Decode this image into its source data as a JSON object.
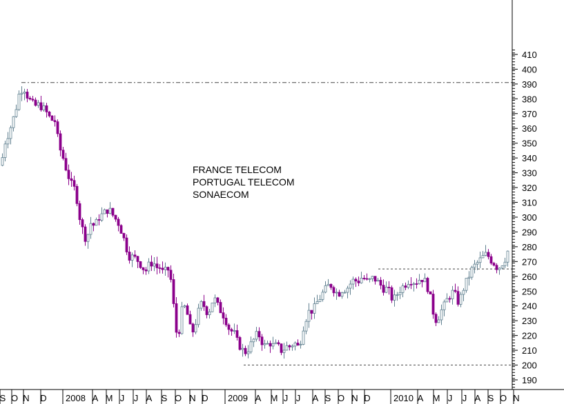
{
  "chart_data": {
    "type": "candlestick",
    "title_lines": [
      "FRANCE TELECOM",
      "PORTUGAL TELECOM",
      "SONAECOM"
    ],
    "y_ticks": [
      190,
      200,
      210,
      220,
      230,
      240,
      250,
      260,
      270,
      280,
      290,
      300,
      310,
      320,
      330,
      340,
      350,
      360,
      370,
      380,
      390,
      400,
      410
    ],
    "x_ticks": [
      "S",
      "O",
      "N",
      "D",
      "2008",
      "A",
      "M",
      "J",
      "J",
      "A",
      "S",
      "O",
      "N",
      "D",
      "2009",
      "A",
      "M",
      "J",
      "J",
      "A",
      "S",
      "O",
      "N",
      "D",
      "2010",
      "A",
      "M",
      "J",
      "J",
      "A",
      "S",
      "O",
      "N"
    ],
    "ylim": [
      185,
      414
    ],
    "grid": false,
    "colors": {
      "up": "#5f7f8f",
      "down": "#8b008b",
      "axis": "#000000",
      "reference": "#444444"
    },
    "reference_lines": [
      {
        "y": 391,
        "style": "dash-dot",
        "span": "from Nov 2007 to right edge"
      },
      {
        "y": 265,
        "style": "dashed",
        "span": "from Dec 2009 to right edge"
      },
      {
        "y": 200,
        "style": "dashed",
        "span": "from Mar 2009 to right edge"
      }
    ],
    "path_points": [
      [
        0,
        335
      ],
      [
        6,
        351
      ],
      [
        12,
        358
      ],
      [
        20,
        370
      ],
      [
        27,
        385
      ],
      [
        33,
        388
      ],
      [
        40,
        380
      ],
      [
        48,
        375
      ],
      [
        56,
        376
      ],
      [
        64,
        372
      ],
      [
        72,
        366
      ],
      [
        78,
        365
      ],
      [
        84,
        348
      ],
      [
        90,
        340
      ],
      [
        96,
        330
      ],
      [
        102,
        322
      ],
      [
        108,
        318
      ],
      [
        114,
        300
      ],
      [
        120,
        288
      ],
      [
        124,
        285
      ],
      [
        130,
        296
      ],
      [
        136,
        294
      ],
      [
        142,
        300
      ],
      [
        148,
        302
      ],
      [
        154,
        305
      ],
      [
        158,
        304
      ],
      [
        164,
        300
      ],
      [
        170,
        296
      ],
      [
        175,
        290
      ],
      [
        180,
        282
      ],
      [
        185,
        274
      ],
      [
        190,
        273
      ],
      [
        195,
        272
      ],
      [
        200,
        270
      ],
      [
        205,
        266
      ],
      [
        210,
        264
      ],
      [
        215,
        268
      ],
      [
        220,
        270
      ],
      [
        225,
        266
      ],
      [
        230,
        266
      ],
      [
        235,
        262
      ],
      [
        240,
        264
      ],
      [
        244,
        265
      ],
      [
        248,
        250
      ],
      [
        252,
        230
      ],
      [
        256,
        215
      ],
      [
        260,
        233
      ],
      [
        264,
        240
      ],
      [
        268,
        238
      ],
      [
        272,
        230
      ],
      [
        276,
        220
      ],
      [
        280,
        226
      ],
      [
        284,
        232
      ],
      [
        288,
        240
      ],
      [
        292,
        242
      ],
      [
        296,
        238
      ],
      [
        300,
        235
      ],
      [
        304,
        240
      ],
      [
        308,
        246
      ],
      [
        312,
        242
      ],
      [
        316,
        238
      ],
      [
        320,
        236
      ],
      [
        324,
        232
      ],
      [
        328,
        228
      ],
      [
        332,
        222
      ],
      [
        336,
        224
      ],
      [
        340,
        218
      ],
      [
        344,
        214
      ],
      [
        348,
        212
      ],
      [
        352,
        208
      ],
      [
        356,
        210
      ],
      [
        360,
        212
      ],
      [
        364,
        216
      ],
      [
        368,
        218
      ],
      [
        372,
        222
      ],
      [
        376,
        218
      ],
      [
        380,
        214
      ],
      [
        384,
        212
      ],
      [
        388,
        216
      ],
      [
        392,
        214
      ],
      [
        396,
        212
      ],
      [
        400,
        214
      ],
      [
        404,
        210
      ],
      [
        408,
        210
      ],
      [
        412,
        212
      ],
      [
        416,
        213
      ],
      [
        420,
        212
      ],
      [
        424,
        216
      ],
      [
        428,
        213
      ],
      [
        432,
        212
      ],
      [
        436,
        222
      ],
      [
        440,
        230
      ],
      [
        444,
        234
      ],
      [
        448,
        238
      ],
      [
        452,
        236
      ],
      [
        456,
        241
      ],
      [
        460,
        244
      ],
      [
        464,
        247
      ],
      [
        468,
        250
      ],
      [
        472,
        252
      ],
      [
        476,
        255
      ],
      [
        480,
        253
      ],
      [
        484,
        250
      ],
      [
        488,
        248
      ],
      [
        492,
        250
      ],
      [
        496,
        252
      ],
      [
        500,
        251
      ],
      [
        504,
        254
      ],
      [
        508,
        256
      ],
      [
        512,
        258
      ],
      [
        516,
        256
      ],
      [
        520,
        258
      ],
      [
        524,
        260
      ],
      [
        528,
        257
      ],
      [
        532,
        256
      ],
      [
        536,
        258
      ],
      [
        540,
        259
      ],
      [
        544,
        257
      ],
      [
        548,
        255
      ],
      [
        552,
        253
      ],
      [
        556,
        251
      ],
      [
        560,
        252
      ],
      [
        564,
        247
      ],
      [
        568,
        244
      ],
      [
        572,
        246
      ],
      [
        576,
        250
      ],
      [
        580,
        252
      ],
      [
        584,
        254
      ],
      [
        588,
        256
      ],
      [
        592,
        258
      ],
      [
        596,
        257
      ],
      [
        600,
        256
      ],
      [
        604,
        257
      ],
      [
        608,
        259
      ],
      [
        612,
        258
      ],
      [
        616,
        255
      ],
      [
        620,
        250
      ],
      [
        624,
        240
      ],
      [
        628,
        232
      ],
      [
        632,
        230
      ],
      [
        636,
        236
      ],
      [
        640,
        238
      ],
      [
        644,
        242
      ],
      [
        648,
        246
      ],
      [
        652,
        248
      ],
      [
        656,
        250
      ],
      [
        660,
        244
      ],
      [
        664,
        242
      ],
      [
        668,
        250
      ],
      [
        672,
        254
      ],
      [
        676,
        258
      ],
      [
        680,
        263
      ],
      [
        684,
        266
      ],
      [
        688,
        268
      ],
      [
        692,
        270
      ],
      [
        696,
        272
      ],
      [
        700,
        274
      ],
      [
        704,
        275
      ],
      [
        708,
        272
      ],
      [
        712,
        270
      ],
      [
        716,
        268
      ],
      [
        720,
        265
      ],
      [
        724,
        268
      ],
      [
        728,
        270
      ],
      [
        732,
        274
      ],
      [
        736,
        280
      ]
    ]
  }
}
